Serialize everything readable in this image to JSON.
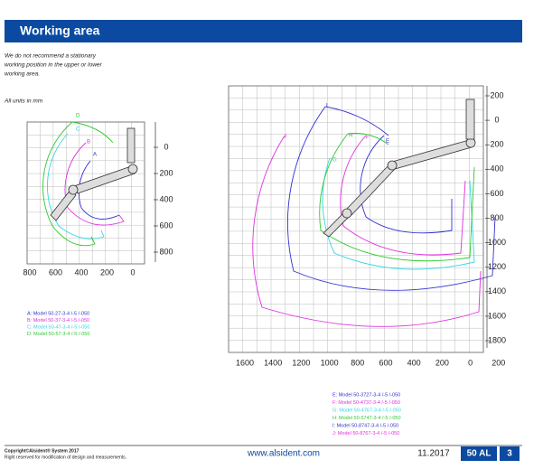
{
  "header": {
    "title": "Working area"
  },
  "intro": [
    "We do not recommend a stationary",
    "working position in the upper or lower",
    "working area."
  ],
  "units": "All units in mm",
  "left_diagram": {
    "x_labels": [
      "800",
      "600",
      "400",
      "200",
      "0"
    ],
    "y_labels": [
      "0",
      "200",
      "400",
      "600",
      "800"
    ],
    "curve_labels": [
      "A",
      "B",
      "C",
      "D"
    ],
    "legend": [
      "A: Model 50-27-3-4 /-5 /-050",
      "B: Model 50-37-3-4 /-5 /-050",
      "C: Model 50-47-3-4 /-5 /-050",
      "D: Model 50-57-3-4 /-5 /-050"
    ]
  },
  "right_diagram": {
    "x_labels": [
      "1600",
      "1400",
      "1200",
      "1000",
      "800",
      "600",
      "400",
      "200",
      "0",
      "200"
    ],
    "y_labels": [
      "200",
      "0",
      "200",
      "400",
      "600",
      "800",
      "1000",
      "1200",
      "1400",
      "1600",
      "1800"
    ],
    "curve_labels": [
      "E",
      "F",
      "G",
      "H",
      "I",
      "J"
    ],
    "legend": [
      "E: Model 50-3727-3-4 /-5 /-050",
      "F: Model 50-4737-3-4 /-5 /-050",
      "G: Model 50-4767-3-4 /-5 /-050",
      "H: Model 50-5747-3-4 /-5 /-050",
      "I: Model 50-8747-3-4 /-5 /-050",
      "J: Model 50-8767-3-4 /-5 /-050"
    ]
  },
  "footer": {
    "copyright": "Copyright©Alsident® System 2017",
    "rights": "Right reserved for modification of design and measurements.",
    "url": "www.alsident.com",
    "date": "11.2017",
    "product": "50 AL",
    "page": "3"
  }
}
